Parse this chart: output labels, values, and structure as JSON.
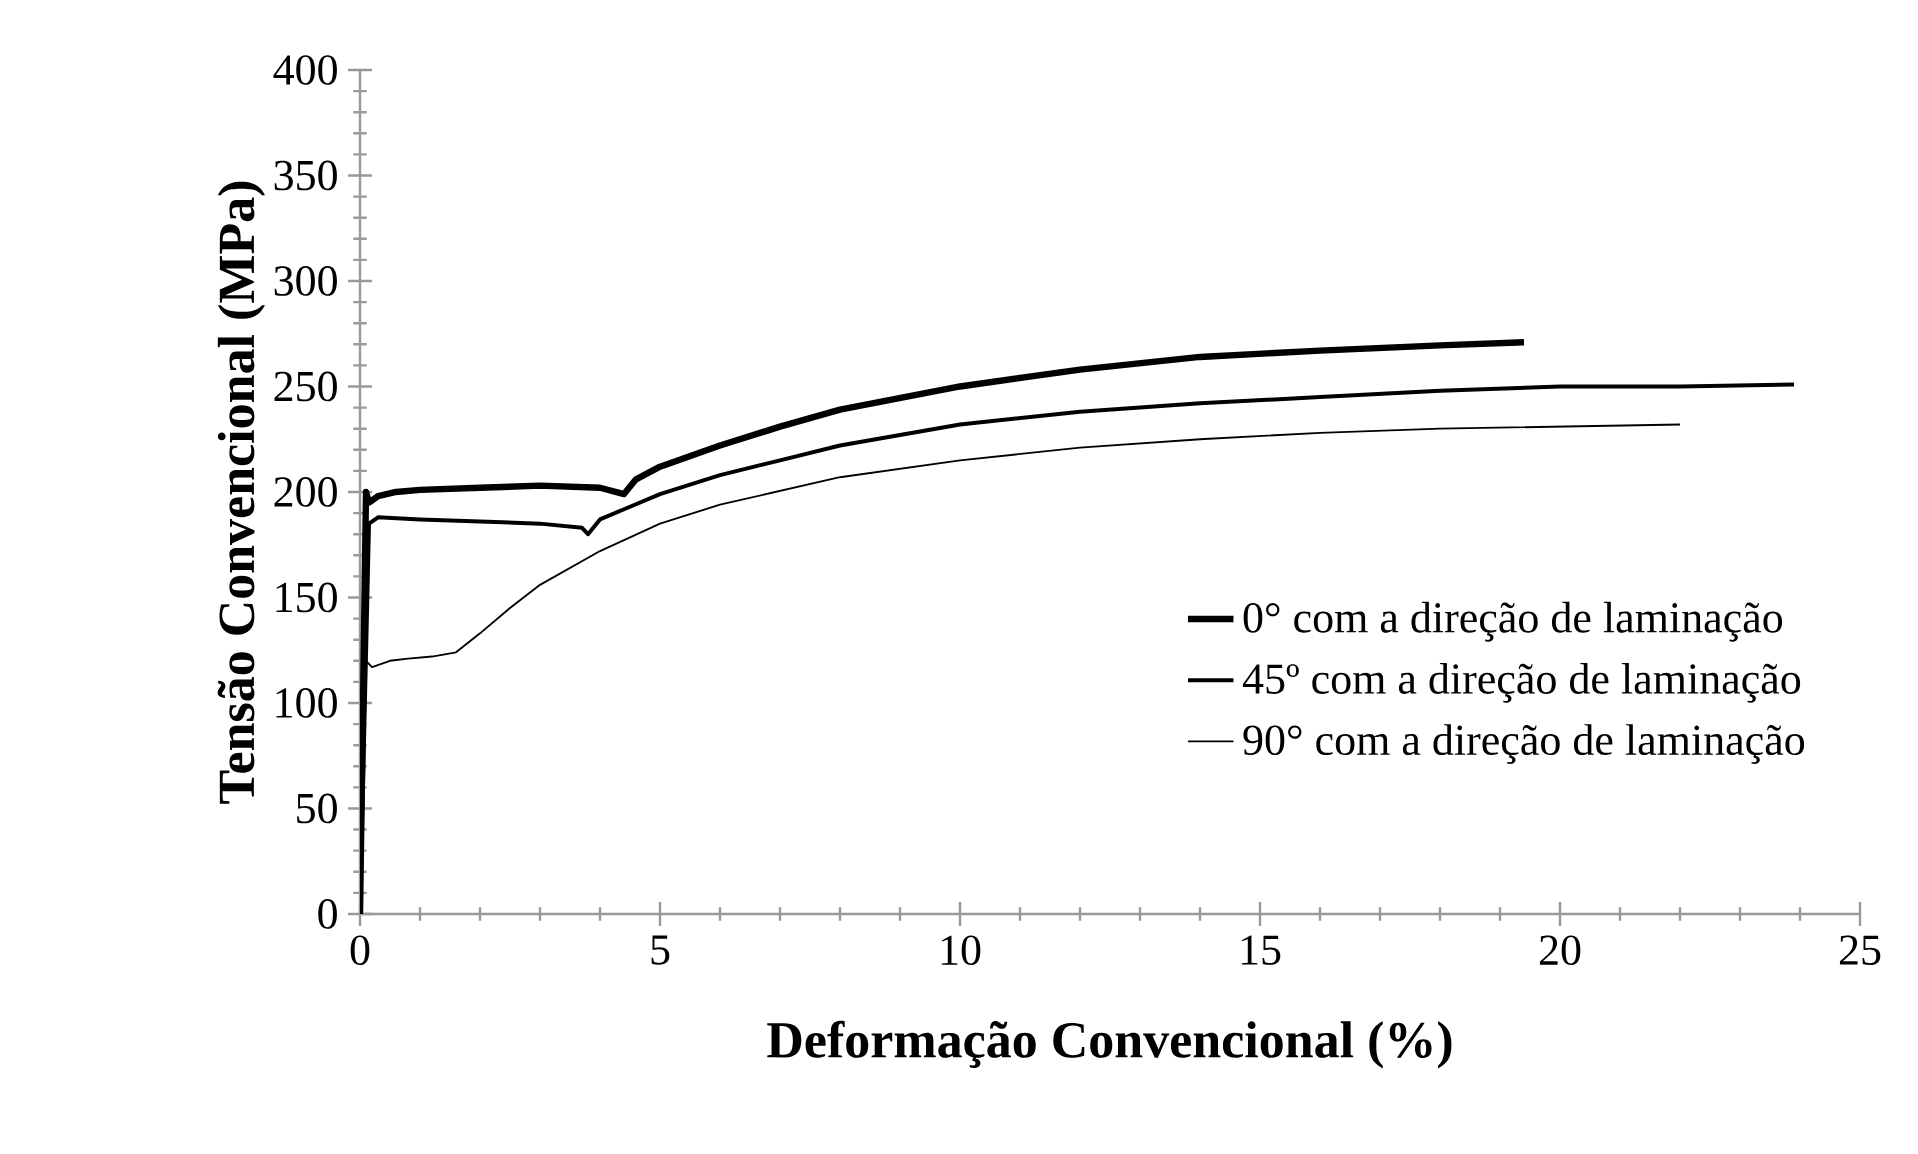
{
  "chart_data": {
    "type": "line",
    "xlabel": "Deformação Convencional (%)",
    "ylabel": "Tensão Convencional (MPa)",
    "xlim": [
      0,
      25
    ],
    "ylim": [
      0,
      400
    ],
    "xticks": [
      0,
      5,
      10,
      15,
      20,
      25
    ],
    "yticks": [
      0,
      50,
      100,
      150,
      200,
      250,
      300,
      350,
      400
    ],
    "grid": false,
    "legend": "right",
    "marker": "none",
    "line_style": "solid",
    "series": [
      {
        "name": "0° com a direção de laminação",
        "color": "#000000",
        "x": [
          0,
          0.1,
          0.15,
          0.3,
          0.6,
          1,
          2,
          3,
          4,
          4.4,
          4.6,
          5,
          6,
          7,
          8,
          10,
          12,
          14,
          16,
          18,
          19.4
        ],
        "values": [
          0,
          200,
          195,
          198,
          200,
          201,
          202,
          203,
          202,
          199,
          206,
          212,
          222,
          231,
          239,
          250,
          258,
          264,
          267,
          269.5,
          271
        ]
      },
      {
        "name": "45º com a direção de laminação",
        "color": "#000000",
        "x": [
          0,
          0.15,
          0.3,
          1,
          2,
          3,
          3.7,
          3.8,
          4,
          4.5,
          5,
          6,
          7,
          8,
          10,
          12,
          14,
          16,
          18,
          20,
          22,
          23.9
        ],
        "values": [
          0,
          185,
          188,
          187,
          186,
          185,
          183,
          180,
          187,
          193,
          199,
          208,
          215,
          222,
          232,
          238,
          242,
          245,
          248,
          250,
          250,
          251
        ]
      },
      {
        "name": "90° com a direção de laminação",
        "color": "#000000",
        "x": [
          0,
          0.1,
          0.2,
          0.5,
          0.8,
          1.2,
          1.6,
          2,
          2.5,
          3,
          4,
          5,
          6,
          8,
          10,
          12,
          14,
          16,
          18,
          20,
          22
        ],
        "values": [
          0,
          120,
          117,
          120,
          121,
          122,
          124,
          133,
          145,
          156,
          172,
          185,
          194,
          207,
          215,
          221,
          225,
          228,
          230,
          231,
          232
        ]
      }
    ]
  }
}
